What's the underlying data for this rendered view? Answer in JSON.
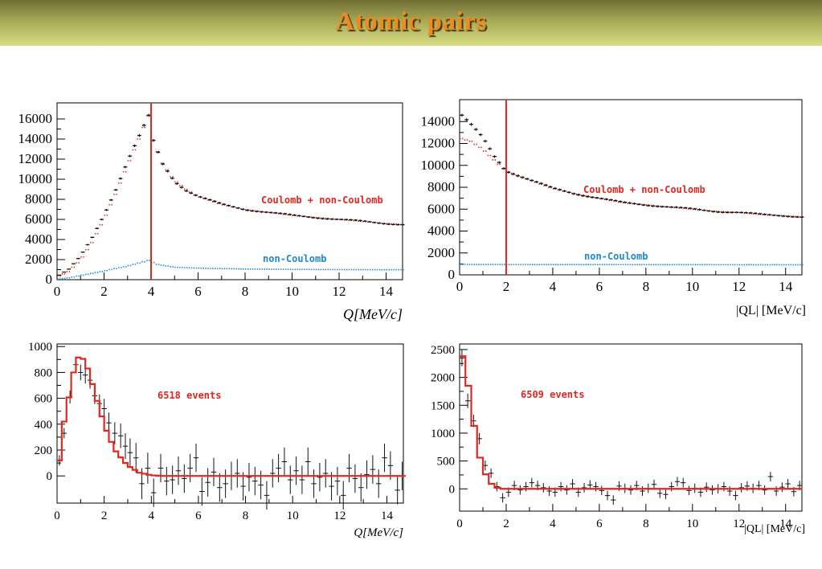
{
  "page": {
    "title": "Atomic pairs"
  },
  "colors": {
    "title": "#f08a1e",
    "coulomb": "#e32620",
    "noncoulomb": "#1e88d6",
    "data": "#111111",
    "cut": "#e32620"
  },
  "chart_data": [
    {
      "id": "q-total",
      "type": "histogram",
      "xlabel": "Q[MeV/c]",
      "x_ticks": [
        "0",
        "2",
        "4",
        "6",
        "8",
        "10",
        "12",
        "14"
      ],
      "y_ticks": [
        "0",
        "2000",
        "4000",
        "6000",
        "8000",
        "10000",
        "12000",
        "14000",
        "16000"
      ],
      "xlim": [
        0,
        14.7
      ],
      "ylim": [
        0,
        17600
      ],
      "cut_x": 4,
      "annotations": [
        "Coulomb + non-Coulomb",
        "non-Coulomb"
      ],
      "anchors": {
        "data": [
          [
            0.1,
            450
          ],
          [
            0.5,
            1000
          ],
          [
            1,
            2300
          ],
          [
            1.5,
            4200
          ],
          [
            2,
            6500
          ],
          [
            2.5,
            9000
          ],
          [
            3,
            11800
          ],
          [
            3.5,
            14300
          ],
          [
            3.9,
            16300
          ],
          [
            4.1,
            13800
          ],
          [
            4.5,
            11500
          ],
          [
            5,
            9800
          ],
          [
            5.5,
            8900
          ],
          [
            6,
            8300
          ],
          [
            7,
            7500
          ],
          [
            8,
            7000
          ],
          [
            9,
            6700
          ],
          [
            10,
            6400
          ],
          [
            11,
            6200
          ],
          [
            12,
            6000
          ],
          [
            13,
            5800
          ],
          [
            14,
            5600
          ],
          [
            14.7,
            5500
          ]
        ],
        "coulomb": [
          [
            0.1,
            350
          ],
          [
            0.5,
            800
          ],
          [
            1,
            1900
          ],
          [
            1.5,
            3700
          ],
          [
            2,
            5900
          ],
          [
            2.5,
            8500
          ],
          [
            3,
            11300
          ],
          [
            3.5,
            14000
          ],
          [
            3.9,
            16300
          ],
          [
            4.1,
            13900
          ],
          [
            4.5,
            11600
          ],
          [
            5,
            9900
          ],
          [
            5.5,
            9000
          ],
          [
            6,
            8300
          ],
          [
            7,
            7500
          ],
          [
            8,
            7000
          ],
          [
            9,
            6700
          ],
          [
            10,
            6400
          ],
          [
            11,
            6200
          ],
          [
            12,
            6000
          ],
          [
            13,
            5800
          ],
          [
            14,
            5600
          ],
          [
            14.7,
            5500
          ]
        ],
        "noncoulomb": [
          [
            0,
            50
          ],
          [
            0.5,
            180
          ],
          [
            1,
            400
          ],
          [
            2,
            850
          ],
          [
            3,
            1350
          ],
          [
            3.6,
            1700
          ],
          [
            3.95,
            1950
          ],
          [
            4.2,
            1550
          ],
          [
            5,
            1250
          ],
          [
            6,
            1150
          ],
          [
            8,
            1060
          ],
          [
            10,
            1020
          ],
          [
            12,
            1000
          ],
          [
            14.7,
            980
          ]
        ]
      }
    },
    {
      "id": "ql-total",
      "type": "histogram",
      "xlabel": "|QL| [MeV/c]",
      "x_ticks": [
        "0",
        "2",
        "4",
        "6",
        "8",
        "10",
        "12",
        "14"
      ],
      "y_ticks": [
        "0",
        "2000",
        "4000",
        "6000",
        "8000",
        "10000",
        "12000",
        "14000"
      ],
      "xlim": [
        0,
        14.7
      ],
      "ylim": [
        0,
        16000
      ],
      "cut_x": 2,
      "annotations": [
        "Coulomb + non-Coulomb",
        "non-Coulomb"
      ],
      "anchors": {
        "data": [
          [
            0,
            14800
          ],
          [
            0.5,
            13700
          ],
          [
            1,
            12500
          ],
          [
            1.5,
            10800
          ],
          [
            2,
            9500
          ],
          [
            3,
            8700
          ],
          [
            4,
            7900
          ],
          [
            5,
            7400
          ],
          [
            6,
            7000
          ],
          [
            7,
            6600
          ],
          [
            8,
            6400
          ],
          [
            9,
            6200
          ],
          [
            10,
            6000
          ],
          [
            11,
            5800
          ],
          [
            12,
            5700
          ],
          [
            13,
            5500
          ],
          [
            14,
            5400
          ],
          [
            14.7,
            5300
          ]
        ],
        "coulomb": [
          [
            0,
            12500
          ],
          [
            0.5,
            12200
          ],
          [
            1,
            11500
          ],
          [
            1.5,
            10500
          ],
          [
            2,
            9500
          ],
          [
            3,
            8700
          ],
          [
            4,
            7900
          ],
          [
            5,
            7400
          ],
          [
            6,
            7000
          ],
          [
            7,
            6600
          ],
          [
            8,
            6400
          ],
          [
            9,
            6200
          ],
          [
            10,
            6000
          ],
          [
            11,
            5800
          ],
          [
            12,
            5700
          ],
          [
            13,
            5500
          ],
          [
            14,
            5400
          ],
          [
            14.7,
            5300
          ]
        ],
        "noncoulomb": [
          [
            0,
            950
          ],
          [
            14.7,
            920
          ]
        ]
      }
    },
    {
      "id": "q-residual",
      "type": "histogram",
      "xlabel": "Q[MeV/c]",
      "x_ticks": [
        "0",
        "2",
        "4",
        "6",
        "8",
        "10",
        "12",
        "14"
      ],
      "y_ticks": [
        "0",
        "200",
        "400",
        "600",
        "800",
        "1000"
      ],
      "xlim": [
        0,
        14.7
      ],
      "ylim": [
        -210,
        1020
      ],
      "annotations": [
        "6518 events"
      ],
      "fit_anchors": [
        [
          0.1,
          120
        ],
        [
          0.3,
          420
        ],
        [
          0.6,
          700
        ],
        [
          0.8,
          900
        ],
        [
          1.0,
          930
        ],
        [
          1.2,
          880
        ],
        [
          1.4,
          780
        ],
        [
          1.6,
          640
        ],
        [
          1.8,
          520
        ],
        [
          2.0,
          400
        ],
        [
          2.2,
          300
        ],
        [
          2.5,
          190
        ],
        [
          2.8,
          120
        ],
        [
          3.0,
          80
        ],
        [
          3.5,
          25
        ],
        [
          4.0,
          5
        ],
        [
          4.5,
          0
        ],
        [
          14.7,
          0
        ]
      ],
      "points": [
        [
          0.1,
          120,
          40
        ],
        [
          0.3,
          330,
          40
        ],
        [
          0.55,
          610,
          50
        ],
        [
          0.8,
          860,
          55
        ],
        [
          1.0,
          800,
          60
        ],
        [
          1.2,
          780,
          65
        ],
        [
          1.4,
          740,
          65
        ],
        [
          1.6,
          620,
          65
        ],
        [
          1.8,
          560,
          70
        ],
        [
          2.0,
          520,
          75
        ],
        [
          2.2,
          410,
          80
        ],
        [
          2.45,
          330,
          85
        ],
        [
          2.7,
          310,
          95
        ],
        [
          2.9,
          230,
          100
        ],
        [
          3.1,
          180,
          110
        ],
        [
          3.35,
          140,
          115
        ],
        [
          3.6,
          -60,
          120
        ],
        [
          3.85,
          60,
          120
        ],
        [
          4.1,
          -130,
          110
        ],
        [
          4.4,
          60,
          110
        ],
        [
          4.65,
          -40,
          110
        ],
        [
          4.9,
          -30,
          110
        ],
        [
          5.15,
          40,
          110
        ],
        [
          5.4,
          -20,
          110
        ],
        [
          5.65,
          60,
          110
        ],
        [
          5.9,
          140,
          110
        ],
        [
          6.15,
          -120,
          110
        ],
        [
          6.4,
          -50,
          110
        ],
        [
          6.65,
          30,
          110
        ],
        [
          6.9,
          -90,
          110
        ],
        [
          7.15,
          -60,
          110
        ],
        [
          7.4,
          0,
          110
        ],
        [
          7.65,
          20,
          110
        ],
        [
          7.9,
          -80,
          110
        ],
        [
          8.15,
          -10,
          110
        ],
        [
          8.4,
          -40,
          110
        ],
        [
          8.65,
          -70,
          110
        ],
        [
          8.9,
          -150,
          110
        ],
        [
          9.15,
          20,
          110
        ],
        [
          9.4,
          60,
          110
        ],
        [
          9.65,
          110,
          110
        ],
        [
          9.9,
          -30,
          110
        ],
        [
          10.15,
          40,
          110
        ],
        [
          10.4,
          -30,
          110
        ],
        [
          10.65,
          110,
          110
        ],
        [
          10.9,
          -60,
          110
        ],
        [
          11.15,
          -10,
          110
        ],
        [
          11.4,
          20,
          110
        ],
        [
          11.65,
          -80,
          110
        ],
        [
          11.9,
          -40,
          110
        ],
        [
          12.15,
          -150,
          110
        ],
        [
          12.4,
          60,
          110
        ],
        [
          12.65,
          -20,
          110
        ],
        [
          12.9,
          -90,
          110
        ],
        [
          13.15,
          10,
          110
        ],
        [
          13.4,
          50,
          110
        ],
        [
          13.65,
          -60,
          110
        ],
        [
          13.9,
          140,
          110
        ],
        [
          14.15,
          80,
          110
        ],
        [
          14.45,
          -110,
          110
        ],
        [
          14.65,
          0,
          110
        ]
      ]
    },
    {
      "id": "ql-residual",
      "type": "histogram",
      "xlabel": "|QL| [MeV/c]",
      "x_ticks": [
        "0",
        "2",
        "4",
        "6",
        "8",
        "10",
        "12",
        "14"
      ],
      "y_ticks": [
        "0",
        "500",
        "1000",
        "1500",
        "2000",
        "2500"
      ],
      "xlim": [
        0,
        14.7
      ],
      "ylim": [
        -400,
        2600
      ],
      "annotations": [
        "6509 events"
      ],
      "fit_anchors": [
        [
          0,
          2380
        ],
        [
          0.25,
          2380
        ],
        [
          0.25,
          1850
        ],
        [
          0.5,
          1850
        ],
        [
          0.5,
          1130
        ],
        [
          0.75,
          1130
        ],
        [
          0.75,
          560
        ],
        [
          1.0,
          560
        ],
        [
          1.0,
          260
        ],
        [
          1.25,
          260
        ],
        [
          1.25,
          90
        ],
        [
          1.5,
          90
        ],
        [
          1.5,
          20
        ],
        [
          1.75,
          20
        ],
        [
          1.75,
          0
        ],
        [
          14.7,
          0
        ]
      ],
      "points": [
        [
          0.1,
          2350,
          150
        ],
        [
          0.35,
          1580,
          130
        ],
        [
          0.6,
          1220,
          110
        ],
        [
          0.85,
          900,
          100
        ],
        [
          1.1,
          420,
          90
        ],
        [
          1.35,
          280,
          85
        ],
        [
          1.6,
          40,
          85
        ],
        [
          1.85,
          -160,
          85
        ],
        [
          2.1,
          -60,
          85
        ],
        [
          2.35,
          60,
          85
        ],
        [
          2.6,
          -20,
          85
        ],
        [
          2.85,
          40,
          85
        ],
        [
          3.1,
          110,
          85
        ],
        [
          3.35,
          60,
          85
        ],
        [
          3.6,
          20,
          85
        ],
        [
          3.85,
          -40,
          85
        ],
        [
          4.1,
          -60,
          85
        ],
        [
          4.35,
          40,
          85
        ],
        [
          4.6,
          -20,
          85
        ],
        [
          4.85,
          90,
          85
        ],
        [
          5.1,
          -60,
          85
        ],
        [
          5.35,
          20,
          85
        ],
        [
          5.6,
          70,
          85
        ],
        [
          5.85,
          40,
          85
        ],
        [
          6.1,
          -30,
          85
        ],
        [
          6.35,
          -120,
          85
        ],
        [
          6.6,
          -200,
          85
        ],
        [
          6.85,
          50,
          85
        ],
        [
          7.1,
          10,
          85
        ],
        [
          7.35,
          -20,
          85
        ],
        [
          7.6,
          60,
          85
        ],
        [
          7.85,
          -40,
          85
        ],
        [
          8.1,
          10,
          85
        ],
        [
          8.35,
          80,
          85
        ],
        [
          8.6,
          -80,
          85
        ],
        [
          8.85,
          -100,
          85
        ],
        [
          9.1,
          40,
          85
        ],
        [
          9.35,
          130,
          85
        ],
        [
          9.6,
          110,
          85
        ],
        [
          9.85,
          -30,
          85
        ],
        [
          10.1,
          10,
          85
        ],
        [
          10.35,
          -60,
          85
        ],
        [
          10.6,
          30,
          85
        ],
        [
          10.85,
          -20,
          85
        ],
        [
          11.1,
          0,
          85
        ],
        [
          11.35,
          40,
          85
        ],
        [
          11.6,
          -40,
          85
        ],
        [
          11.85,
          -120,
          85
        ],
        [
          12.1,
          20,
          85
        ],
        [
          12.35,
          50,
          85
        ],
        [
          12.6,
          10,
          85
        ],
        [
          12.85,
          60,
          85
        ],
        [
          13.1,
          -20,
          85
        ],
        [
          13.35,
          220,
          85
        ],
        [
          13.6,
          -40,
          85
        ],
        [
          13.85,
          30,
          85
        ],
        [
          14.1,
          90,
          85
        ],
        [
          14.35,
          -50,
          85
        ],
        [
          14.6,
          60,
          85
        ]
      ]
    }
  ]
}
